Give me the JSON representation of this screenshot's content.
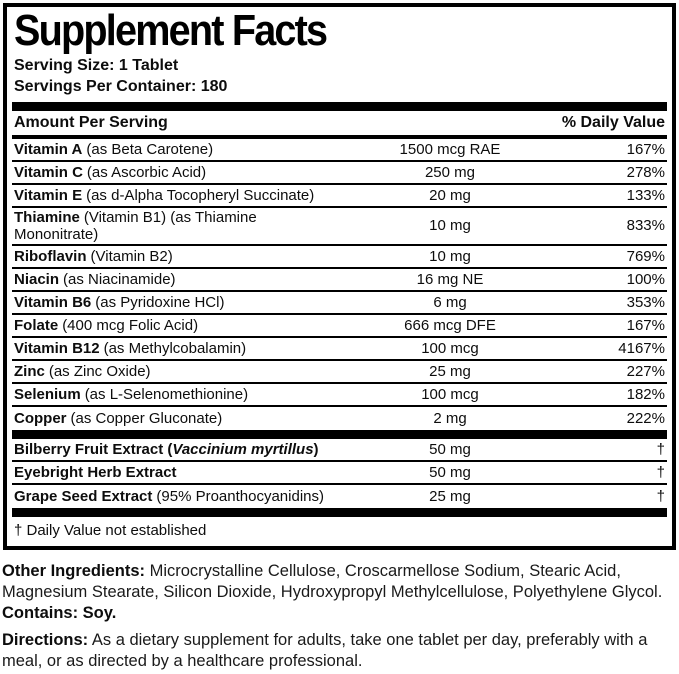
{
  "panel": {
    "title": "Supplement Facts",
    "serving_size": "Serving Size: 1 Tablet",
    "servings_per_container": "Servings Per Container: 180",
    "columns": {
      "amount_header": "Amount Per Serving",
      "dv_header": "% Daily Value"
    },
    "nutrients": [
      {
        "name": "Vitamin A",
        "detail": "(as Beta Carotene)",
        "amount": "1500 mcg RAE",
        "dv": "167%"
      },
      {
        "name": "Vitamin C",
        "detail": "(as Ascorbic Acid)",
        "amount": "250 mg",
        "dv": "278%"
      },
      {
        "name": "Vitamin E",
        "detail": "(as d-Alpha Tocopheryl Succinate)",
        "amount": "20 mg",
        "dv": "133%"
      },
      {
        "name": "Thiamine",
        "detail": "(Vitamin B1) (as Thiamine Mononitrate)",
        "amount": "10 mg",
        "dv": "833%"
      },
      {
        "name": "Riboflavin",
        "detail": "(Vitamin B2)",
        "amount": "10 mg",
        "dv": "769%"
      },
      {
        "name": "Niacin",
        "detail": "(as Niacinamide)",
        "amount": "16 mg NE",
        "dv": "100%"
      },
      {
        "name": "Vitamin B6",
        "detail": "(as Pyridoxine HCl)",
        "amount": "6 mg",
        "dv": "353%"
      },
      {
        "name": "Folate",
        "detail": "(400 mcg Folic Acid)",
        "amount": "666 mcg DFE",
        "dv": "167%"
      },
      {
        "name": "Vitamin B12",
        "detail": "(as Methylcobalamin)",
        "amount": "100 mcg",
        "dv": "4167%"
      },
      {
        "name": "Zinc",
        "detail": "(as Zinc Oxide)",
        "amount": "25 mg",
        "dv": "227%"
      },
      {
        "name": "Selenium",
        "detail": "(as L-Selenomethionine)",
        "amount": "100 mcg",
        "dv": "182%"
      },
      {
        "name": "Copper",
        "detail": "(as Copper Gluconate)",
        "amount": "2 mg",
        "dv": "222%"
      }
    ],
    "botanicals": [
      {
        "name": "Bilberry Fruit Extract (",
        "name_italic": "Vaccinium myrtillus",
        "name_suffix": ")",
        "detail": "",
        "amount": "50 mg",
        "dv": "†"
      },
      {
        "name": "Eyebright Herb Extract",
        "name_italic": "",
        "name_suffix": "",
        "detail": "",
        "amount": "50 mg",
        "dv": "†"
      },
      {
        "name": "Grape Seed Extract",
        "name_italic": "",
        "name_suffix": "",
        "detail": "(95% Proanthocyanidins)",
        "amount": "25 mg",
        "dv": "†"
      }
    ],
    "footnote": "† Daily Value not established"
  },
  "other_ingredients": {
    "label": "Other Ingredients:",
    "text": " Microcrystalline Cellulose, Croscarmellose Sodium, Stearic Acid, Magnesium Stearate, Silicon Dioxide, Hydroxypropyl Methylcellulose, Polyethylene Glycol."
  },
  "contains": "Contains: Soy.",
  "directions": {
    "label": "Directions:",
    "text": " As a dietary supplement for adults, take one tablet per day, preferably with a meal, or as directed by a healthcare professional."
  },
  "colors": {
    "ink": "#0d0d0d",
    "bar": "#000000",
    "background": "#ffffff"
  }
}
